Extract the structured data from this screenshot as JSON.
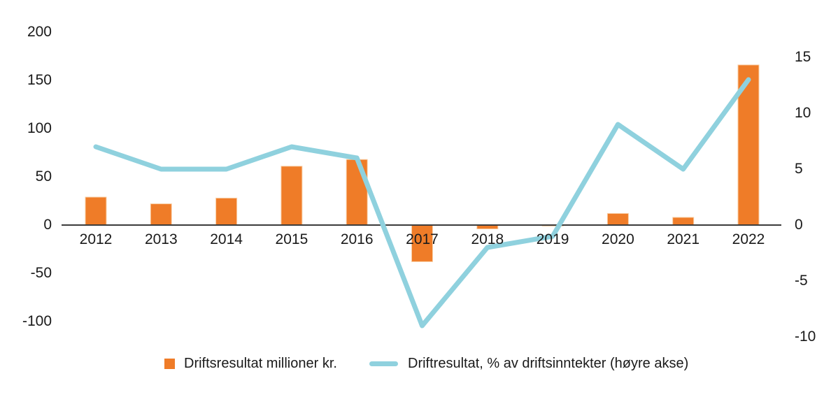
{
  "chart_data": {
    "type": "bar+line",
    "title": "",
    "categories": [
      "2012",
      "2013",
      "2014",
      "2015",
      "2016",
      "2017",
      "2018",
      "2019",
      "2020",
      "2021",
      "2022"
    ],
    "series": [
      {
        "name": "Driftsresultat millioner kr.",
        "type": "bar",
        "axis": "left",
        "values": [
          29,
          22,
          28,
          61,
          68,
          -38,
          -4,
          -1,
          12,
          8,
          166
        ]
      },
      {
        "name": "Driftresultat, % av driftsinntekter (høyre akse)",
        "type": "line",
        "axis": "right",
        "values": [
          7,
          5,
          5,
          7,
          6,
          -9,
          -2,
          -1,
          9,
          5,
          13
        ]
      }
    ],
    "left_axis": {
      "ticks": [
        200,
        150,
        100,
        50,
        0,
        -50,
        -100
      ],
      "min": -100,
      "max": 200
    },
    "right_axis": {
      "ticks": [
        15,
        10,
        5,
        0,
        -5,
        -10
      ],
      "min": -10,
      "max": 15
    },
    "grid": false,
    "legend_position": "bottom"
  },
  "colors": {
    "bar": "#EF7C28",
    "bar_border": "#F9CFA6",
    "line": "#8FD1DE",
    "axis_line": "#3C3C3C",
    "text": "#1a1a1a"
  }
}
